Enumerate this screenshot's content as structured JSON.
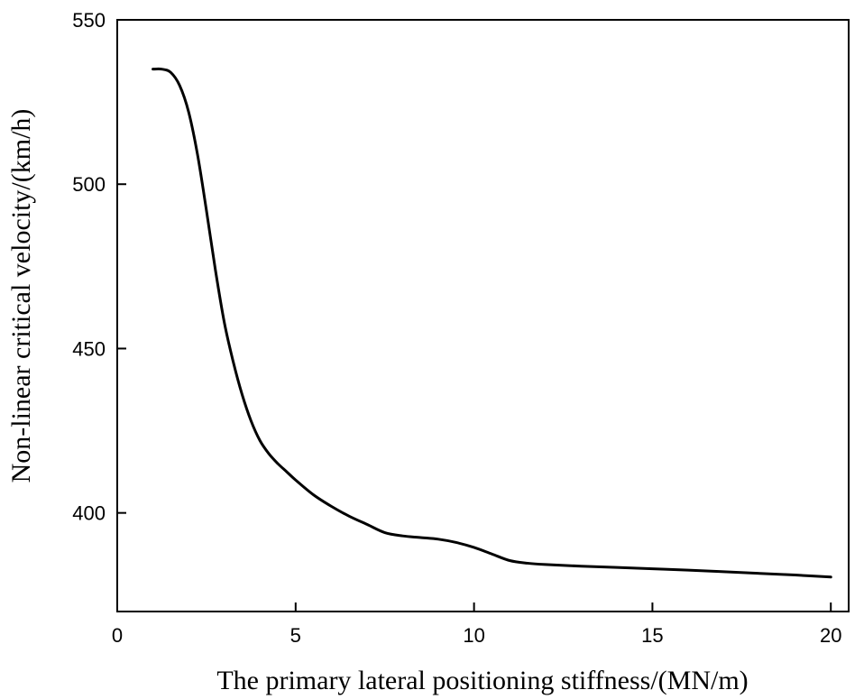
{
  "chart_data": {
    "type": "line",
    "title": "",
    "xlabel": "The primary lateral positioning stiffness/(MN/m)",
    "ylabel": "Non-linear critical velocity/(km/h)",
    "xlim": [
      0,
      20.5
    ],
    "ylim": [
      370,
      550
    ],
    "xticks": [
      0,
      5,
      10,
      15,
      20
    ],
    "yticks": [
      400,
      450,
      500,
      550
    ],
    "grid": false,
    "legend": "none",
    "series": [
      {
        "color": "#000000",
        "x": [
          1.0,
          1.25,
          1.5,
          1.75,
          2.0,
          2.25,
          2.5,
          2.75,
          3.0,
          3.25,
          3.5,
          3.75,
          4.0,
          4.25,
          4.5,
          4.75,
          5.0,
          5.5,
          6.0,
          6.5,
          7.0,
          7.5,
          8.0,
          8.5,
          9.0,
          9.5,
          10.0,
          10.5,
          11.0,
          11.5,
          12.0,
          13.0,
          14.0,
          15.0,
          16.0,
          17.0,
          18.0,
          19.0,
          20.0
        ],
        "y": [
          535,
          535,
          534,
          530,
          522,
          509,
          492,
          474,
          458,
          446,
          436,
          428,
          422,
          418,
          415,
          412.5,
          410,
          405.5,
          402,
          399,
          396.5,
          394,
          393,
          392.5,
          392,
          391,
          389.5,
          387.5,
          385.5,
          384.7,
          384.3,
          383.8,
          383.4,
          383.0,
          382.6,
          382.1,
          381.6,
          381.1,
          380.5
        ]
      }
    ]
  }
}
